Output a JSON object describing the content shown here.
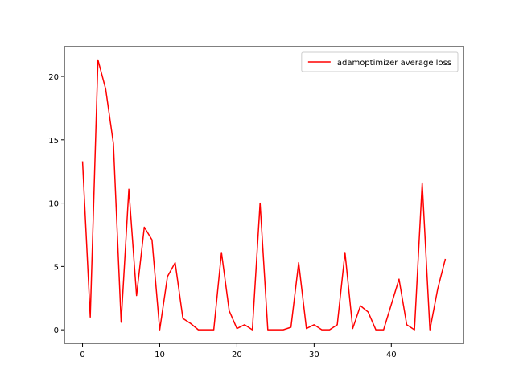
{
  "chart_data": {
    "type": "line",
    "title": "",
    "xlabel": "",
    "ylabel": "",
    "xlim": [
      -2.35,
      49.35
    ],
    "ylim": [
      -1.07,
      22.35
    ],
    "x_ticks": [
      0,
      10,
      20,
      30,
      40
    ],
    "y_ticks": [
      0,
      5,
      10,
      15,
      20
    ],
    "grid": false,
    "legend_position": "top-right",
    "series": [
      {
        "name": "adamoptimizer average loss",
        "color": "#ff0000",
        "x": [
          0,
          1,
          2,
          3,
          4,
          5,
          6,
          7,
          8,
          9,
          10,
          11,
          12,
          13,
          14,
          15,
          16,
          17,
          18,
          19,
          20,
          21,
          22,
          23,
          24,
          25,
          26,
          27,
          28,
          29,
          30,
          31,
          32,
          33,
          34,
          35,
          36,
          37,
          38,
          39,
          40,
          41,
          42,
          43,
          44,
          45,
          46,
          47
        ],
        "y": [
          13.3,
          1.0,
          21.3,
          19.0,
          14.7,
          0.6,
          11.1,
          2.7,
          8.1,
          7.1,
          0.0,
          4.2,
          5.3,
          0.9,
          0.5,
          0.0,
          0.0,
          0.0,
          6.1,
          1.5,
          0.1,
          0.4,
          0.0,
          10.0,
          0.0,
          0.0,
          0.0,
          0.2,
          5.3,
          0.1,
          0.4,
          0.0,
          0.0,
          0.4,
          6.1,
          0.1,
          1.9,
          1.4,
          0.0,
          0.0,
          2.0,
          4.0,
          0.4,
          0.0,
          11.6,
          0.0,
          3.2,
          5.6
        ]
      }
    ]
  }
}
